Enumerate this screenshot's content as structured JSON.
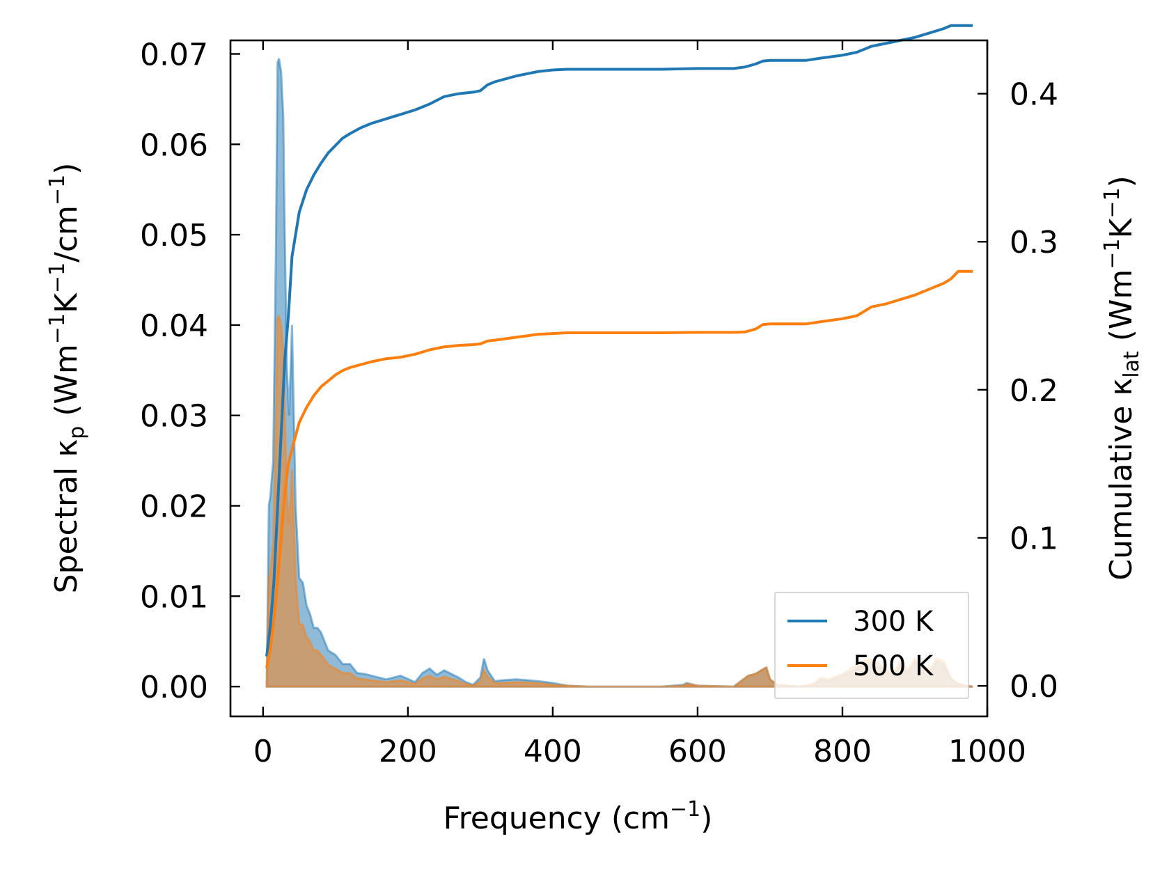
{
  "chart_data": {
    "type": "line",
    "title": "",
    "xlabel": {
      "base": "Frequency (cm",
      "sup": "−1",
      "tail": ")"
    },
    "ylabel_left": {
      "a": "Spectral κ",
      "sub": "p",
      "b": " (Wm",
      "sup1": "−1",
      "c": "K",
      "sup2": "−1",
      "d": "/cm",
      "sup3": "−1",
      "e": ")"
    },
    "ylabel_right": {
      "a": "Cumulative κ",
      "sub": "lat",
      "b": " (Wm",
      "sup1": "−1",
      "c": "K",
      "sup2": "−1",
      "d": ")"
    },
    "xlim": [
      -45,
      1000
    ],
    "ylim_left": [
      -0.0033,
      0.0715
    ],
    "ylim_right": [
      -0.0206,
      0.436
    ],
    "x_ticks": [
      0,
      200,
      400,
      600,
      800,
      1000
    ],
    "x_tick_labels": [
      "0",
      "200",
      "400",
      "600",
      "800",
      "1000"
    ],
    "y_left_ticks": [
      0.0,
      0.01,
      0.02,
      0.03,
      0.04,
      0.05,
      0.06,
      0.07
    ],
    "y_left_tick_labels": [
      "0.00",
      "0.01",
      "0.02",
      "0.03",
      "0.04",
      "0.05",
      "0.06",
      "0.07"
    ],
    "y_right_ticks": [
      0.0,
      0.1,
      0.2,
      0.3,
      0.4
    ],
    "y_right_tick_labels": [
      "0.0",
      "0.1",
      "0.2",
      "0.3",
      "0.4"
    ],
    "legend": {
      "position": "lower-right",
      "entries": [
        "300 K",
        "500 K"
      ]
    },
    "colors": {
      "300 K": "#1f77b4",
      "500 K": "#ff7f0e"
    },
    "series": [
      {
        "name": "300 K",
        "kind": "spectral",
        "axis": "left",
        "x": [
          5,
          8,
          10,
          14,
          18,
          20,
          22,
          25,
          28,
          30,
          33,
          36,
          40,
          45,
          50,
          55,
          60,
          65,
          70,
          75,
          80,
          85,
          90,
          100,
          110,
          120,
          130,
          140,
          150,
          170,
          190,
          210,
          220,
          230,
          240,
          250,
          270,
          280,
          290,
          300,
          305,
          310,
          320,
          330,
          350,
          380,
          400,
          420,
          450,
          500,
          550,
          580,
          585,
          600,
          650,
          670,
          680,
          690,
          695,
          700,
          710,
          740,
          760,
          770,
          780,
          800,
          820,
          830,
          840,
          850,
          860,
          870,
          880,
          890,
          900,
          910,
          920,
          930,
          940,
          950,
          960,
          970,
          980
        ],
        "y": [
          0.0,
          0.02,
          0.021,
          0.025,
          0.05,
          0.069,
          0.0695,
          0.068,
          0.063,
          0.05,
          0.035,
          0.03,
          0.04,
          0.02,
          0.012,
          0.0115,
          0.009,
          0.008,
          0.0065,
          0.0065,
          0.006,
          0.005,
          0.004,
          0.0035,
          0.0025,
          0.0025,
          0.0015,
          0.0014,
          0.0012,
          0.0008,
          0.0012,
          0.0005,
          0.0015,
          0.002,
          0.0013,
          0.0018,
          0.001,
          0.0005,
          0.0002,
          0.001,
          0.0031,
          0.0018,
          0.0006,
          0.0007,
          0.0008,
          0.0006,
          0.0004,
          0.0001,
          0.0,
          0.0,
          0.0,
          0.0002,
          0.0004,
          0.0001,
          0.0,
          0.0012,
          0.0014,
          0.0019,
          0.0021,
          0.0008,
          0.0002,
          0.0,
          0.0002,
          0.0008,
          0.0006,
          0.0012,
          0.002,
          0.0025,
          0.0026,
          0.0022,
          0.0016,
          0.0012,
          0.0025,
          0.0015,
          0.0028,
          0.0022,
          0.0015,
          0.0028,
          0.0025,
          0.0008,
          0.0003,
          0.0001,
          0.0
        ]
      },
      {
        "name": "500 K",
        "kind": "spectral",
        "axis": "left",
        "x": [
          5,
          8,
          10,
          14,
          18,
          20,
          22,
          25,
          28,
          30,
          33,
          36,
          40,
          45,
          50,
          55,
          60,
          65,
          70,
          75,
          80,
          85,
          90,
          100,
          110,
          120,
          130,
          140,
          150,
          170,
          190,
          210,
          220,
          230,
          240,
          250,
          270,
          280,
          290,
          300,
          305,
          310,
          320,
          330,
          350,
          380,
          400,
          420,
          450,
          500,
          550,
          580,
          585,
          600,
          650,
          670,
          680,
          690,
          695,
          700,
          710,
          740,
          760,
          770,
          780,
          800,
          820,
          830,
          840,
          850,
          860,
          870,
          880,
          890,
          900,
          910,
          920,
          930,
          940,
          950,
          960,
          970,
          980
        ],
        "y": [
          0.0,
          0.012,
          0.0125,
          0.016,
          0.03,
          0.0408,
          0.041,
          0.04,
          0.037,
          0.03,
          0.021,
          0.018,
          0.024,
          0.012,
          0.007,
          0.0068,
          0.0055,
          0.005,
          0.004,
          0.004,
          0.0035,
          0.003,
          0.0024,
          0.002,
          0.0015,
          0.0015,
          0.0009,
          0.0008,
          0.0007,
          0.0005,
          0.0007,
          0.0003,
          0.0009,
          0.0012,
          0.0008,
          0.0011,
          0.0006,
          0.0003,
          0.0001,
          0.0006,
          0.0018,
          0.0011,
          0.0004,
          0.0004,
          0.0005,
          0.0004,
          0.0002,
          0.0001,
          0.0,
          0.0,
          0.0,
          0.0001,
          0.0003,
          0.0001,
          0.0,
          0.0012,
          0.0014,
          0.0019,
          0.0021,
          0.0008,
          0.0002,
          0.0,
          0.0003,
          0.001,
          0.0008,
          0.0014,
          0.0024,
          0.0029,
          0.003,
          0.0026,
          0.0019,
          0.0014,
          0.0029,
          0.0018,
          0.0031,
          0.0025,
          0.0018,
          0.0031,
          0.0028,
          0.0009,
          0.0003,
          0.0001,
          0.0
        ]
      },
      {
        "name": "300 K",
        "kind": "cumulative",
        "axis": "right",
        "x": [
          5,
          10,
          15,
          20,
          25,
          30,
          35,
          40,
          50,
          60,
          70,
          80,
          90,
          100,
          110,
          120,
          135,
          150,
          170,
          190,
          210,
          230,
          250,
          270,
          290,
          300,
          310,
          320,
          350,
          380,
          400,
          420,
          450,
          500,
          550,
          600,
          650,
          665,
          680,
          690,
          700,
          720,
          750,
          770,
          800,
          820,
          830,
          840,
          860,
          880,
          900,
          920,
          940,
          950,
          960,
          980
        ],
        "y": [
          0.02,
          0.04,
          0.07,
          0.12,
          0.17,
          0.22,
          0.25,
          0.29,
          0.32,
          0.335,
          0.345,
          0.353,
          0.36,
          0.365,
          0.37,
          0.373,
          0.377,
          0.38,
          0.383,
          0.386,
          0.389,
          0.393,
          0.398,
          0.4,
          0.401,
          0.402,
          0.406,
          0.408,
          0.412,
          0.415,
          0.416,
          0.4165,
          0.4165,
          0.4165,
          0.4165,
          0.417,
          0.417,
          0.418,
          0.42,
          0.422,
          0.4225,
          0.4225,
          0.4225,
          0.424,
          0.426,
          0.428,
          0.43,
          0.432,
          0.434,
          0.436,
          0.438,
          0.441,
          0.444,
          0.446,
          0.446,
          0.446
        ]
      },
      {
        "name": "500 K",
        "kind": "cumulative",
        "axis": "right",
        "x": [
          5,
          10,
          15,
          20,
          25,
          30,
          35,
          40,
          50,
          60,
          70,
          80,
          90,
          100,
          110,
          120,
          135,
          150,
          170,
          190,
          210,
          230,
          250,
          270,
          290,
          300,
          310,
          320,
          350,
          380,
          400,
          420,
          450,
          500,
          550,
          600,
          650,
          665,
          680,
          690,
          700,
          720,
          750,
          770,
          800,
          820,
          830,
          840,
          860,
          880,
          900,
          920,
          940,
          950,
          960,
          980
        ],
        "y": [
          0.012,
          0.025,
          0.045,
          0.07,
          0.1,
          0.13,
          0.15,
          0.16,
          0.178,
          0.188,
          0.196,
          0.202,
          0.206,
          0.21,
          0.213,
          0.215,
          0.217,
          0.219,
          0.221,
          0.222,
          0.224,
          0.227,
          0.229,
          0.23,
          0.2305,
          0.231,
          0.233,
          0.2335,
          0.2355,
          0.2375,
          0.238,
          0.2385,
          0.2385,
          0.2385,
          0.2385,
          0.2388,
          0.2388,
          0.239,
          0.241,
          0.244,
          0.2445,
          0.2445,
          0.2445,
          0.246,
          0.248,
          0.25,
          0.253,
          0.256,
          0.258,
          0.261,
          0.264,
          0.268,
          0.272,
          0.275,
          0.28,
          0.28
        ]
      }
    ]
  }
}
